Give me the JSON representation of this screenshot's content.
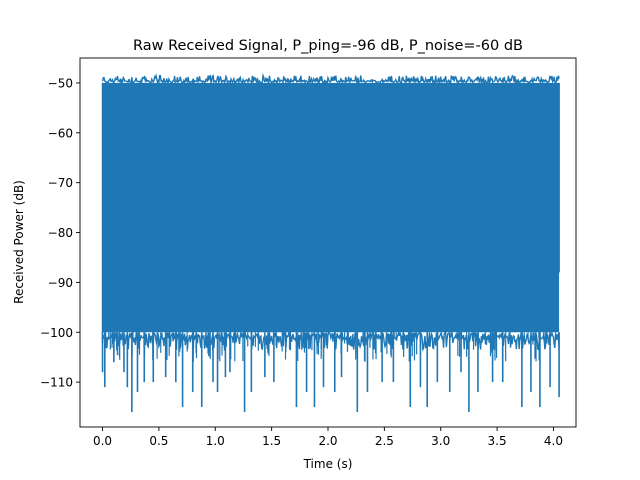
{
  "chart_data": {
    "type": "line",
    "title": "Raw Received Signal, P_ping=-96 dB, P_noise=-60 dB",
    "xlabel": "Time (s)",
    "ylabel": "Received Power (dB)",
    "xlim": [
      -0.2,
      4.2
    ],
    "ylim": [
      -119,
      -45
    ],
    "x_ticks": [
      0.0,
      0.5,
      1.0,
      1.5,
      2.0,
      2.5,
      3.0,
      3.5,
      4.0
    ],
    "x_tick_labels": [
      "0.0",
      "0.5",
      "1.0",
      "1.5",
      "2.0",
      "2.5",
      "3.0",
      "3.5",
      "4.0"
    ],
    "y_ticks": [
      -110,
      -100,
      -90,
      -80,
      -70,
      -60,
      -50
    ],
    "y_tick_labels": [
      "−110",
      "−100",
      "−90",
      "−80",
      "−70",
      "−60",
      "−50"
    ],
    "grid": false,
    "line_color": "#1f77b4",
    "series": [
      {
        "x_start": 0.0,
        "x_end": 4.05,
        "band_low": -100,
        "band_high": -50,
        "max_approx": -48.5,
        "min_approx": -116,
        "deep_dips": [
          {
            "x": 0.0,
            "y": -108
          },
          {
            "x": 0.02,
            "y": -111
          },
          {
            "x": 0.1,
            "y": -106
          },
          {
            "x": 0.19,
            "y": -108
          },
          {
            "x": 0.22,
            "y": -111
          },
          {
            "x": 0.26,
            "y": -116
          },
          {
            "x": 0.31,
            "y": -112
          },
          {
            "x": 0.37,
            "y": -110
          },
          {
            "x": 0.45,
            "y": -110
          },
          {
            "x": 0.56,
            "y": -109
          },
          {
            "x": 0.65,
            "y": -110
          },
          {
            "x": 0.71,
            "y": -115
          },
          {
            "x": 0.8,
            "y": -112
          },
          {
            "x": 0.88,
            "y": -115
          },
          {
            "x": 0.98,
            "y": -110
          },
          {
            "x": 1.02,
            "y": -112
          },
          {
            "x": 1.09,
            "y": -109
          },
          {
            "x": 1.13,
            "y": -108
          },
          {
            "x": 1.26,
            "y": -116
          },
          {
            "x": 1.32,
            "y": -112
          },
          {
            "x": 1.44,
            "y": -109
          },
          {
            "x": 1.52,
            "y": -110
          },
          {
            "x": 1.72,
            "y": -115
          },
          {
            "x": 1.81,
            "y": -112
          },
          {
            "x": 1.88,
            "y": -115
          },
          {
            "x": 1.96,
            "y": -111
          },
          {
            "x": 2.06,
            "y": -112
          },
          {
            "x": 2.12,
            "y": -109
          },
          {
            "x": 2.26,
            "y": -116
          },
          {
            "x": 2.35,
            "y": -112
          },
          {
            "x": 2.48,
            "y": -110
          },
          {
            "x": 2.58,
            "y": -110
          },
          {
            "x": 2.73,
            "y": -115
          },
          {
            "x": 2.82,
            "y": -111
          },
          {
            "x": 2.88,
            "y": -115
          },
          {
            "x": 2.97,
            "y": -110
          },
          {
            "x": 3.08,
            "y": -112
          },
          {
            "x": 3.18,
            "y": -108
          },
          {
            "x": 3.25,
            "y": -116
          },
          {
            "x": 3.33,
            "y": -112
          },
          {
            "x": 3.46,
            "y": -110
          },
          {
            "x": 3.55,
            "y": -110
          },
          {
            "x": 3.72,
            "y": -115
          },
          {
            "x": 3.8,
            "y": -112
          },
          {
            "x": 3.88,
            "y": -115
          },
          {
            "x": 3.97,
            "y": -111
          },
          {
            "x": 4.05,
            "y": -113
          }
        ]
      }
    ]
  }
}
